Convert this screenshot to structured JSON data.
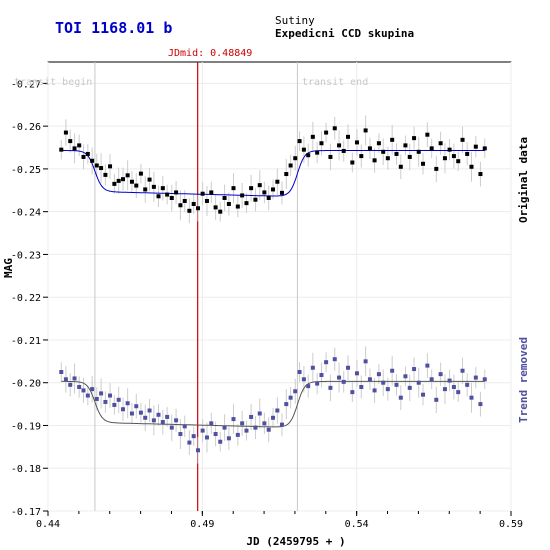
{
  "header": {
    "title": "TOI 1168.01 b",
    "observer": "Sutiny",
    "group": "Expedicni CCD skupina"
  },
  "chart_data": {
    "type": "scatter",
    "title": "TOI 1168.01 b",
    "xlabel": "JD (2459795 + )",
    "ylabel": "MAG",
    "xlim": [
      0.44,
      0.59
    ],
    "ylim": [
      -0.275,
      -0.17
    ],
    "y_inverted": true,
    "x_ticks": [
      0.44,
      0.49,
      0.54,
      0.59
    ],
    "x_tick_labels": [
      "0.44",
      "0.49",
      "0.54",
      "0.59"
    ],
    "y_ticks": [
      -0.27,
      -0.26,
      -0.25,
      -0.24,
      -0.23,
      -0.22,
      -0.21,
      -0.2,
      -0.19,
      -0.18,
      -0.17
    ],
    "y_tick_labels": [
      "-0.27",
      "-0.26",
      "-0.25",
      "-0.24",
      "-0.23",
      "-0.22",
      "-0.21",
      "-0.20",
      "-0.19",
      "-0.18",
      "-0.17"
    ],
    "markers": {
      "transit_begin": 0.4552,
      "transit_end": 0.5208,
      "jd_mid": 0.48849,
      "transit_begin_label": "transit begin",
      "transit_end_label": "transit end",
      "jd_mid_label": "JDmid: 0.48849"
    },
    "transit_depth": 0.0102,
    "series": [
      {
        "name": "Original data",
        "baseline": -0.2543,
        "points": [
          [
            0.4443,
            -0.2545
          ],
          [
            0.4458,
            -0.2585
          ],
          [
            0.4472,
            -0.2565
          ],
          [
            0.4486,
            -0.2548
          ],
          [
            0.4501,
            -0.2555
          ],
          [
            0.4515,
            -0.2528
          ],
          [
            0.4529,
            -0.2535
          ],
          [
            0.4543,
            -0.2519
          ],
          [
            0.4558,
            -0.2508
          ],
          [
            0.4572,
            -0.2502
          ],
          [
            0.4586,
            -0.2486
          ],
          [
            0.4601,
            -0.2506
          ],
          [
            0.4615,
            -0.2465
          ],
          [
            0.4629,
            -0.2472
          ],
          [
            0.4643,
            -0.2476
          ],
          [
            0.4658,
            -0.2485
          ],
          [
            0.4672,
            -0.247
          ],
          [
            0.4686,
            -0.2461
          ],
          [
            0.4701,
            -0.2489
          ],
          [
            0.4715,
            -0.2452
          ],
          [
            0.4729,
            -0.2475
          ],
          [
            0.4743,
            -0.2458
          ],
          [
            0.4758,
            -0.2436
          ],
          [
            0.4772,
            -0.2455
          ],
          [
            0.4786,
            -0.244
          ],
          [
            0.4801,
            -0.2432
          ],
          [
            0.4815,
            -0.2445
          ],
          [
            0.4829,
            -0.2415
          ],
          [
            0.4843,
            -0.2425
          ],
          [
            0.4858,
            -0.2402
          ],
          [
            0.4872,
            -0.2418
          ],
          [
            0.4886,
            -0.2408
          ],
          [
            0.4901,
            -0.2442
          ],
          [
            0.4915,
            -0.2425
          ],
          [
            0.4929,
            -0.2445
          ],
          [
            0.4943,
            -0.241
          ],
          [
            0.4958,
            -0.24
          ],
          [
            0.4972,
            -0.2432
          ],
          [
            0.4986,
            -0.2418
          ],
          [
            0.5001,
            -0.2455
          ],
          [
            0.5015,
            -0.2412
          ],
          [
            0.5029,
            -0.2438
          ],
          [
            0.5043,
            -0.242
          ],
          [
            0.5058,
            -0.2455
          ],
          [
            0.5072,
            -0.2428
          ],
          [
            0.5086,
            -0.2462
          ],
          [
            0.5101,
            -0.2445
          ],
          [
            0.5115,
            -0.2432
          ],
          [
            0.5129,
            -0.2452
          ],
          [
            0.5143,
            -0.247
          ],
          [
            0.5158,
            -0.2444
          ],
          [
            0.5172,
            -0.2488
          ],
          [
            0.5186,
            -0.2508
          ],
          [
            0.5201,
            -0.2525
          ],
          [
            0.5215,
            -0.2565
          ],
          [
            0.5229,
            -0.2545
          ],
          [
            0.5243,
            -0.2532
          ],
          [
            0.5258,
            -0.2575
          ],
          [
            0.5272,
            -0.2538
          ],
          [
            0.5286,
            -0.256
          ],
          [
            0.5301,
            -0.2585
          ],
          [
            0.5315,
            -0.2528
          ],
          [
            0.5329,
            -0.2595
          ],
          [
            0.5343,
            -0.2555
          ],
          [
            0.5358,
            -0.2542
          ],
          [
            0.5372,
            -0.2575
          ],
          [
            0.5386,
            -0.2515
          ],
          [
            0.5401,
            -0.2562
          ],
          [
            0.5415,
            -0.253
          ],
          [
            0.5429,
            -0.259
          ],
          [
            0.5443,
            -0.2548
          ],
          [
            0.5458,
            -0.252
          ],
          [
            0.5472,
            -0.256
          ],
          [
            0.5486,
            -0.254
          ],
          [
            0.5501,
            -0.2525
          ],
          [
            0.5515,
            -0.2568
          ],
          [
            0.5529,
            -0.2535
          ],
          [
            0.5543,
            -0.2505
          ],
          [
            0.5558,
            -0.2555
          ],
          [
            0.5572,
            -0.2528
          ],
          [
            0.5586,
            -0.2572
          ],
          [
            0.5601,
            -0.254
          ],
          [
            0.5615,
            -0.2512
          ],
          [
            0.5629,
            -0.258
          ],
          [
            0.5643,
            -0.2548
          ],
          [
            0.5658,
            -0.25
          ],
          [
            0.5672,
            -0.256
          ],
          [
            0.5686,
            -0.2525
          ],
          [
            0.5701,
            -0.2545
          ],
          [
            0.5715,
            -0.253
          ],
          [
            0.5729,
            -0.2518
          ],
          [
            0.5743,
            -0.2568
          ],
          [
            0.5758,
            -0.2535
          ],
          [
            0.5772,
            -0.2505
          ],
          [
            0.5786,
            -0.2552
          ],
          [
            0.5801,
            -0.2488
          ],
          [
            0.5815,
            -0.2548
          ]
        ]
      },
      {
        "name": "Trend removed",
        "baseline": -0.2003,
        "points": [
          [
            0.4443,
            -0.2025
          ],
          [
            0.4458,
            -0.2008
          ],
          [
            0.4472,
            -0.1995
          ],
          [
            0.4486,
            -0.201
          ],
          [
            0.4501,
            -0.199
          ],
          [
            0.4515,
            -0.1982
          ],
          [
            0.4529,
            -0.197
          ],
          [
            0.4543,
            -0.1985
          ],
          [
            0.4558,
            -0.1962
          ],
          [
            0.4572,
            -0.1975
          ],
          [
            0.4586,
            -0.1955
          ],
          [
            0.4601,
            -0.197
          ],
          [
            0.4615,
            -0.1948
          ],
          [
            0.4629,
            -0.196
          ],
          [
            0.4643,
            -0.1938
          ],
          [
            0.4658,
            -0.1952
          ],
          [
            0.4672,
            -0.1928
          ],
          [
            0.4686,
            -0.1945
          ],
          [
            0.4701,
            -0.193
          ],
          [
            0.4715,
            -0.1918
          ],
          [
            0.4729,
            -0.1935
          ],
          [
            0.4743,
            -0.1912
          ],
          [
            0.4758,
            -0.1925
          ],
          [
            0.4772,
            -0.1908
          ],
          [
            0.4786,
            -0.192
          ],
          [
            0.4801,
            -0.1895
          ],
          [
            0.4815,
            -0.1912
          ],
          [
            0.4829,
            -0.188
          ],
          [
            0.4843,
            -0.1898
          ],
          [
            0.4858,
            -0.186
          ],
          [
            0.4872,
            -0.1875
          ],
          [
            0.4886,
            -0.1842
          ],
          [
            0.4901,
            -0.1888
          ],
          [
            0.4915,
            -0.1872
          ],
          [
            0.4929,
            -0.1905
          ],
          [
            0.4943,
            -0.188
          ],
          [
            0.4958,
            -0.1862
          ],
          [
            0.4972,
            -0.1895
          ],
          [
            0.4986,
            -0.187
          ],
          [
            0.5001,
            -0.1915
          ],
          [
            0.5015,
            -0.1878
          ],
          [
            0.5029,
            -0.1905
          ],
          [
            0.5043,
            -0.1888
          ],
          [
            0.5058,
            -0.192
          ],
          [
            0.5072,
            -0.1895
          ],
          [
            0.5086,
            -0.1928
          ],
          [
            0.5101,
            -0.1905
          ],
          [
            0.5115,
            -0.189
          ],
          [
            0.5129,
            -0.1918
          ],
          [
            0.5143,
            -0.1935
          ],
          [
            0.5158,
            -0.1902
          ],
          [
            0.5172,
            -0.195
          ],
          [
            0.5186,
            -0.1965
          ],
          [
            0.5201,
            -0.198
          ],
          [
            0.5215,
            -0.2025
          ],
          [
            0.5229,
            -0.2008
          ],
          [
            0.5243,
            -0.1992
          ],
          [
            0.5258,
            -0.2035
          ],
          [
            0.5272,
            -0.1998
          ],
          [
            0.5286,
            -0.2018
          ],
          [
            0.5301,
            -0.2048
          ],
          [
            0.5315,
            -0.1988
          ],
          [
            0.5329,
            -0.2055
          ],
          [
            0.5343,
            -0.2012
          ],
          [
            0.5358,
            -0.2002
          ],
          [
            0.5372,
            -0.2035
          ],
          [
            0.5386,
            -0.1978
          ],
          [
            0.5401,
            -0.2022
          ],
          [
            0.5415,
            -0.199
          ],
          [
            0.5429,
            -0.205
          ],
          [
            0.5443,
            -0.2008
          ],
          [
            0.5458,
            -0.1982
          ],
          [
            0.5472,
            -0.202
          ],
          [
            0.5486,
            -0.2
          ],
          [
            0.5501,
            -0.1985
          ],
          [
            0.5515,
            -0.2028
          ],
          [
            0.5529,
            -0.1995
          ],
          [
            0.5543,
            -0.1965
          ],
          [
            0.5558,
            -0.2015
          ],
          [
            0.5572,
            -0.1988
          ],
          [
            0.5586,
            -0.2032
          ],
          [
            0.5601,
            -0.2
          ],
          [
            0.5615,
            -0.1972
          ],
          [
            0.5629,
            -0.204
          ],
          [
            0.5643,
            -0.2008
          ],
          [
            0.5658,
            -0.196
          ],
          [
            0.5672,
            -0.202
          ],
          [
            0.5686,
            -0.1985
          ],
          [
            0.5701,
            -0.2005
          ],
          [
            0.5715,
            -0.199
          ],
          [
            0.5729,
            -0.1978
          ],
          [
            0.5743,
            -0.2028
          ],
          [
            0.5758,
            -0.1995
          ],
          [
            0.5772,
            -0.1965
          ],
          [
            0.5786,
            -0.2012
          ],
          [
            0.5801,
            -0.195
          ],
          [
            0.5815,
            -0.2008
          ]
        ]
      }
    ]
  },
  "side_labels": {
    "original": "Original data",
    "trend_removed": "Trend removed"
  },
  "colors": {
    "title": "#0000cc",
    "original_points": "#000000",
    "original_model": "#0000cc",
    "trend_points": "#5050a0",
    "trend_model": "#555555",
    "midline": "#cc0000",
    "transit_lines": "#c8c8c8",
    "error_bars": "#cccccc",
    "side_original": "#000000",
    "side_trend": "#5050a0"
  }
}
